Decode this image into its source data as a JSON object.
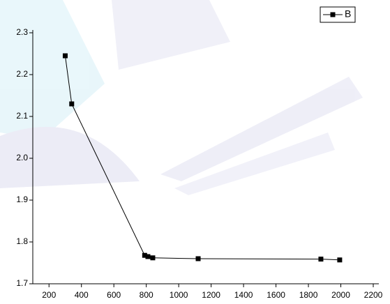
{
  "chart_data": {
    "type": "line",
    "series": [
      {
        "name": "B",
        "color": "#000000",
        "x": [
          300,
          340,
          790,
          810,
          840,
          1120,
          1877,
          1993
        ],
        "values": [
          2.245,
          2.13,
          1.768,
          1.765,
          1.762,
          1.76,
          1.759,
          1.757
        ]
      }
    ],
    "xlim": [
      100,
      2200
    ],
    "xticks": [
      200,
      400,
      600,
      800,
      1000,
      1200,
      1400,
      1600,
      1800,
      2000,
      2200
    ],
    "ylim": [
      1.7,
      2.3
    ],
    "yticks": [
      1.7,
      1.8,
      1.9,
      {
        "value": 2.0,
        "label": "2.0"
      },
      2.1,
      2.2,
      2.3
    ],
    "legend": "top-right",
    "grid": false
  }
}
